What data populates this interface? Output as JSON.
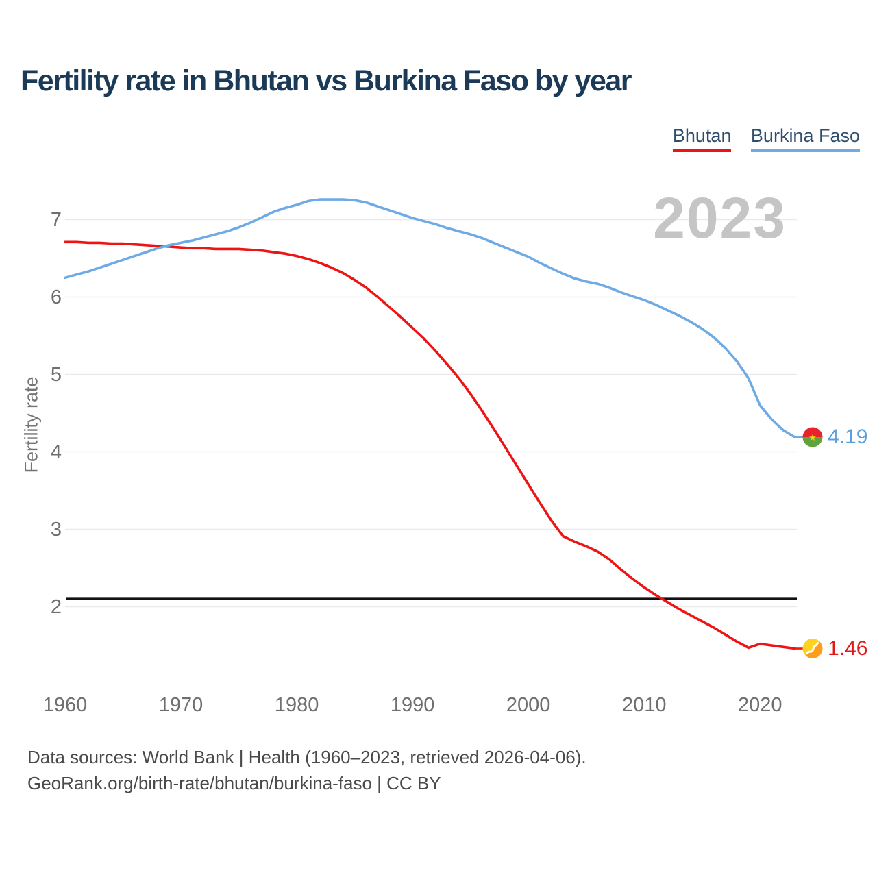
{
  "title": "Fertility rate in Bhutan vs Burkina Faso by year",
  "watermark": "2023",
  "axes": {
    "ylabel": "Fertility rate"
  },
  "legend": {
    "position": "top-right",
    "items": [
      {
        "label": "Bhutan",
        "color": "#ee1414"
      },
      {
        "label": "Burkina Faso",
        "color": "#6daae6"
      }
    ]
  },
  "annotations": {
    "bhutan_end": "1.46",
    "burkina_end": "4.19"
  },
  "footer": {
    "line1": "Data sources: World Bank | Health (1960–2023, retrieved 2026-04-06).",
    "line2": "GeoRank.org/birth-rate/bhutan/burkina-faso | CC BY"
  },
  "chart_data": {
    "type": "line",
    "title": "Fertility rate in Bhutan vs Burkina Faso by year",
    "xlabel": "",
    "ylabel": "Fertility rate",
    "grid": "horizontal",
    "xticks": [
      1960,
      1970,
      1980,
      1990,
      2000,
      2010,
      2020
    ],
    "yticks": [
      2,
      3,
      4,
      5,
      6,
      7
    ],
    "xlim": [
      1960,
      2023
    ],
    "ylim": [
      1.3,
      7.4
    ],
    "reference_line": {
      "value": 2.1,
      "color": "#111111"
    },
    "x": [
      1960,
      1961,
      1962,
      1963,
      1964,
      1965,
      1966,
      1967,
      1968,
      1969,
      1970,
      1971,
      1972,
      1973,
      1974,
      1975,
      1976,
      1977,
      1978,
      1979,
      1980,
      1981,
      1982,
      1983,
      1984,
      1985,
      1986,
      1987,
      1988,
      1989,
      1990,
      1991,
      1992,
      1993,
      1994,
      1995,
      1996,
      1997,
      1998,
      1999,
      2000,
      2001,
      2002,
      2003,
      2004,
      2005,
      2006,
      2007,
      2008,
      2009,
      2010,
      2011,
      2012,
      2013,
      2014,
      2015,
      2016,
      2017,
      2018,
      2019,
      2020,
      2021,
      2022,
      2023
    ],
    "series": [
      {
        "name": "Bhutan",
        "color": "#ee1414",
        "end_label": "1.46",
        "values": [
          6.71,
          6.71,
          6.7,
          6.7,
          6.69,
          6.69,
          6.68,
          6.67,
          6.66,
          6.65,
          6.64,
          6.63,
          6.63,
          6.62,
          6.62,
          6.62,
          6.61,
          6.6,
          6.58,
          6.56,
          6.53,
          6.49,
          6.44,
          6.38,
          6.31,
          6.22,
          6.12,
          6.0,
          5.87,
          5.74,
          5.6,
          5.46,
          5.3,
          5.13,
          4.95,
          4.75,
          4.53,
          4.3,
          4.06,
          3.82,
          3.58,
          3.34,
          3.11,
          2.91,
          2.84,
          2.78,
          2.71,
          2.61,
          2.48,
          2.36,
          2.25,
          2.15,
          2.06,
          1.97,
          1.89,
          1.81,
          1.73,
          1.64,
          1.55,
          1.47,
          1.52,
          1.5,
          1.48,
          1.46
        ]
      },
      {
        "name": "Burkina Faso",
        "color": "#6daae6",
        "end_label": "4.19",
        "values": [
          6.25,
          6.29,
          6.33,
          6.38,
          6.43,
          6.48,
          6.53,
          6.58,
          6.63,
          6.67,
          6.7,
          6.73,
          6.77,
          6.81,
          6.85,
          6.9,
          6.96,
          7.03,
          7.1,
          7.15,
          7.19,
          7.24,
          7.26,
          7.26,
          7.26,
          7.25,
          7.22,
          7.17,
          7.12,
          7.07,
          7.02,
          6.98,
          6.94,
          6.89,
          6.85,
          6.81,
          6.76,
          6.7,
          6.64,
          6.58,
          6.52,
          6.44,
          6.37,
          6.3,
          6.24,
          6.2,
          6.17,
          6.12,
          6.06,
          6.01,
          5.96,
          5.9,
          5.83,
          5.76,
          5.68,
          5.59,
          5.48,
          5.34,
          5.17,
          4.95,
          4.6,
          4.42,
          4.28,
          4.19
        ]
      }
    ]
  }
}
